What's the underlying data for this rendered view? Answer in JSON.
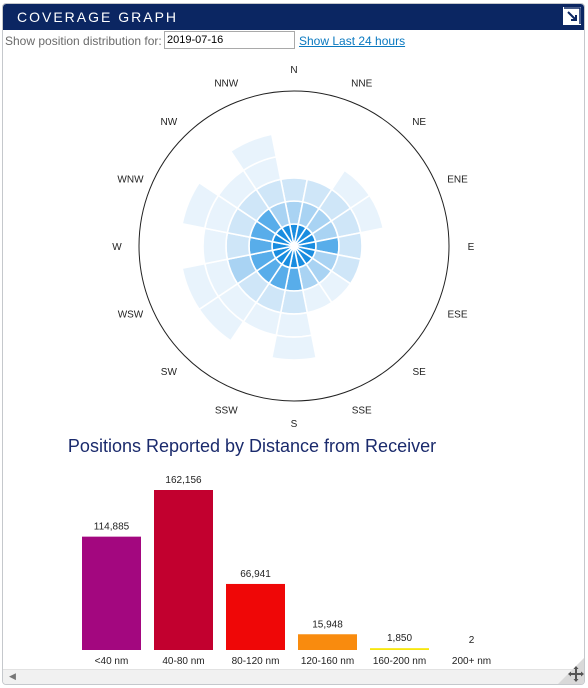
{
  "window": {
    "title": "COVERAGE GRAPH"
  },
  "toolbar": {
    "label": "Show position distribution for:",
    "date_value": "2019-07-16",
    "last24_link": "Show Last 24 hours"
  },
  "icons": {
    "expand": "expand-icon",
    "resize": "resize-move-icon",
    "scroll_left": "scroll-left-arrow-icon"
  },
  "chart_data": [
    {
      "type": "polar",
      "directions": [
        "N",
        "NNE",
        "NE",
        "ENE",
        "E",
        "ESE",
        "SE",
        "SSE",
        "S",
        "SSW",
        "SW",
        "WSW",
        "W",
        "WNW",
        "NW",
        "NNW"
      ],
      "rings": [
        "<40 nm",
        "40-80 nm",
        "80-120 nm",
        "120-160 nm",
        "160-200 nm"
      ],
      "intensity_by_direction": [
        [
          5,
          3,
          2,
          0,
          0
        ],
        [
          5,
          3,
          2,
          0,
          0
        ],
        [
          5,
          3,
          2,
          1,
          0
        ],
        [
          5,
          3,
          2,
          1,
          0
        ],
        [
          5,
          4,
          2,
          0,
          0
        ],
        [
          5,
          3,
          2,
          0,
          0
        ],
        [
          5,
          3,
          1,
          0,
          0
        ],
        [
          5,
          3,
          1,
          0,
          0
        ],
        [
          5,
          4,
          2,
          1,
          1
        ],
        [
          5,
          4,
          2,
          1,
          0
        ],
        [
          5,
          4,
          2,
          1,
          1
        ],
        [
          5,
          4,
          3,
          1,
          1
        ],
        [
          5,
          4,
          2,
          1,
          0
        ],
        [
          5,
          4,
          2,
          1,
          1
        ],
        [
          5,
          4,
          2,
          1,
          0
        ],
        [
          5,
          3,
          2,
          1,
          1
        ]
      ],
      "palette": [
        "#ffffff",
        "#e8f3fc",
        "#cfe6f8",
        "#a9d3f3",
        "#58adea",
        "#1a8de0"
      ]
    },
    {
      "type": "bar",
      "title": "Positions Reported by Distance from Receiver",
      "categories": [
        "<40 nm",
        "40-80 nm",
        "80-120 nm",
        "120-160 nm",
        "160-200 nm",
        "200+ nm"
      ],
      "values": [
        114885,
        162156,
        66941,
        15948,
        1850,
        2
      ],
      "value_labels": [
        "114,885",
        "162,156",
        "66,941",
        "15,948",
        "1,850",
        "2"
      ],
      "colors": [
        "#a3077f",
        "#c2002f",
        "#ef0707",
        "#f98b0e",
        "#f7e60d",
        "#999999"
      ],
      "ylim": [
        0,
        162156
      ]
    }
  ]
}
